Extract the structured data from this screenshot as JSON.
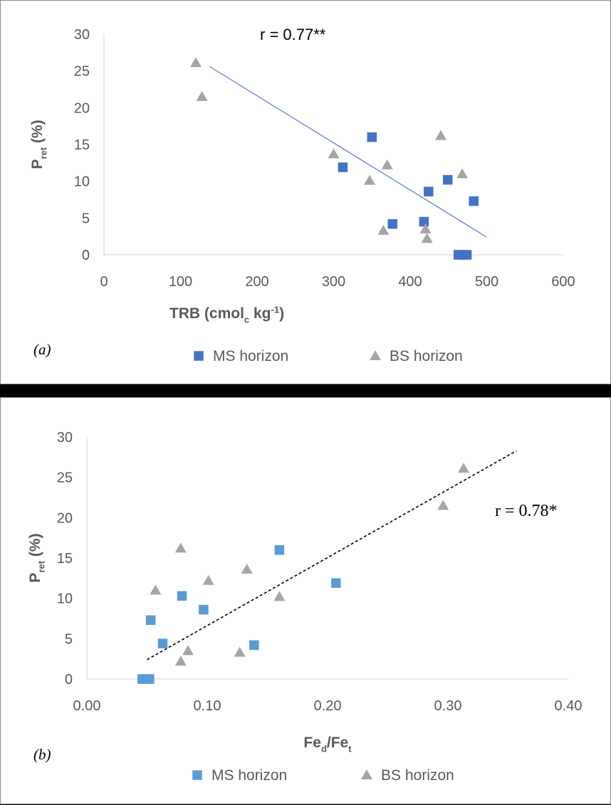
{
  "chart_data": [
    {
      "type": "scatter",
      "panel_label": "(a)",
      "xlabel": "TRB (cmol_c kg^-1)",
      "ylabel": "P_ret (%)",
      "xlim": [
        0,
        600
      ],
      "ylim": [
        0,
        30
      ],
      "x_ticks": [
        0,
        100,
        200,
        300,
        400,
        500,
        600
      ],
      "y_ticks": [
        0,
        5,
        10,
        15,
        20,
        25,
        30
      ],
      "annotation": "r = 0.77**",
      "legend_position": "bottom",
      "grid": false,
      "series": [
        {
          "name": "MS horizon",
          "marker": "square",
          "color": "#4472C4",
          "x": [
            350,
            312,
            449,
            424,
            483,
            377,
            418,
            463,
            469,
            474
          ],
          "y": [
            16.0,
            11.9,
            10.2,
            8.6,
            7.3,
            4.2,
            4.5,
            0.0,
            0.0,
            0.0
          ]
        },
        {
          "name": "BS horizon",
          "marker": "triangle",
          "color": "#A5A5A5",
          "x": [
            120,
            128,
            440,
            300,
            370,
            347,
            468,
            365,
            420,
            422
          ],
          "y": [
            26.1,
            21.5,
            16.2,
            13.7,
            12.2,
            10.1,
            11.0,
            3.3,
            3.5,
            2.2
          ]
        }
      ],
      "trendline": {
        "style": "solid",
        "color": "#4472C4",
        "x": [
          138,
          500
        ],
        "y": [
          25.6,
          2.4
        ]
      }
    },
    {
      "type": "scatter",
      "panel_label": "(b)",
      "xlabel": "Fe_d/Fe_t",
      "ylabel": "P_ret (%)",
      "xlim": [
        0,
        0.4
      ],
      "ylim": [
        0,
        30
      ],
      "x_ticks": [
        "0.00",
        "0.10",
        "0.20",
        "0.30",
        "0.40"
      ],
      "y_ticks": [
        0,
        5,
        10,
        15,
        20,
        25,
        30
      ],
      "annotation": "r = 0.78*",
      "legend_position": "bottom",
      "grid": false,
      "series": [
        {
          "name": "MS horizon",
          "marker": "square",
          "color": "#5B9BD5",
          "x": [
            0.16,
            0.207,
            0.079,
            0.097,
            0.053,
            0.063,
            0.139,
            0.046,
            0.049,
            0.052
          ],
          "y": [
            16.0,
            11.9,
            10.3,
            8.6,
            7.3,
            4.4,
            4.2,
            0.0,
            0.0,
            0.0
          ]
        },
        {
          "name": "BS horizon",
          "marker": "triangle",
          "color": "#A5A5A5",
          "x": [
            0.313,
            0.296,
            0.078,
            0.133,
            0.101,
            0.16,
            0.057,
            0.084,
            0.127,
            0.078
          ],
          "y": [
            26.1,
            21.5,
            16.2,
            13.6,
            12.2,
            10.2,
            11.0,
            3.5,
            3.3,
            2.2
          ]
        }
      ],
      "trendline": {
        "style": "dashed",
        "color": "#000000",
        "x": [
          0.05,
          0.357
        ],
        "y": [
          2.4,
          28.3
        ]
      }
    }
  ]
}
